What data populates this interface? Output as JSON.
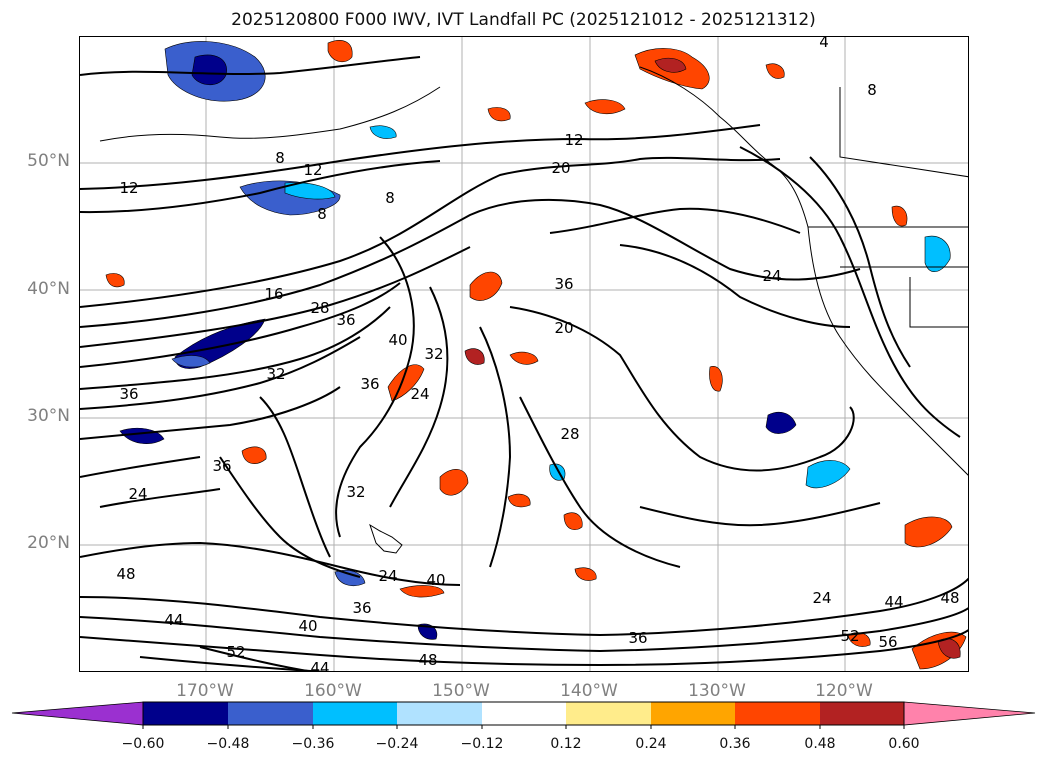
{
  "title": "2025120800 F000 IWV, IVT Landfall PC (2025121012 - 2025121312)",
  "lat_labels": [
    "50°N",
    "40°N",
    "30°N",
    "20°N"
  ],
  "lon_labels": [
    "170°W",
    "160°W",
    "150°W",
    "140°W",
    "130°W",
    "120°W"
  ],
  "contour_labels": [
    "4",
    "8",
    "8",
    "8",
    "8",
    "12",
    "12",
    "12",
    "20",
    "16",
    "28",
    "36",
    "40",
    "32",
    "36",
    "24",
    "32",
    "20",
    "28",
    "24",
    "36",
    "36",
    "36",
    "24",
    "32",
    "24",
    "40",
    "36",
    "48",
    "44",
    "40",
    "52",
    "44",
    "48",
    "24",
    "44",
    "48",
    "36",
    "56",
    "52"
  ],
  "colorbar": {
    "ticks": [
      "−0.60",
      "−0.48",
      "−0.36",
      "−0.24",
      "−0.12",
      "0.12",
      "0.24",
      "0.36",
      "0.48",
      "0.60"
    ],
    "colors": [
      "#9b30d0",
      "#00008b",
      "#3a5fcd",
      "#00bfff",
      "#b0e2ff",
      "#ffffff",
      "#ffec8b",
      "#ffa500",
      "#ff4500",
      "#b22222",
      "#ff82ab"
    ]
  }
}
